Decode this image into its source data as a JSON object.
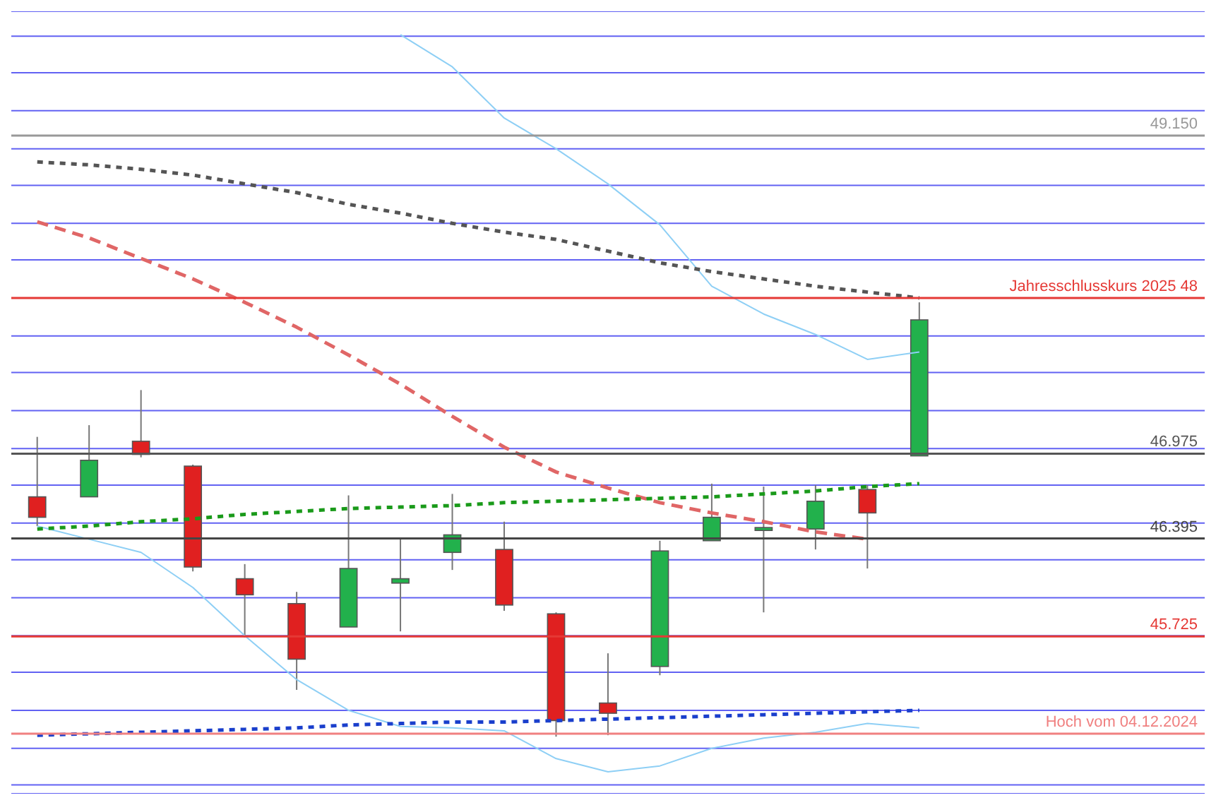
{
  "chart_data": {
    "type": "candlestick",
    "categories": [
      null,
      null,
      null,
      null,
      null,
      null,
      null,
      null,
      null,
      null,
      null,
      null,
      null,
      null,
      null,
      null,
      null,
      null,
      null,
      null,
      null,
      null,
      null
    ],
    "ohlc": [
      [
        46.68,
        47.09,
        46.48,
        46.54
      ],
      [
        46.68,
        47.17,
        46.68,
        46.93
      ],
      [
        47.06,
        47.41,
        46.95,
        46.97
      ],
      [
        46.89,
        46.9,
        46.17,
        46.2
      ],
      [
        46.12,
        46.22,
        45.72,
        46.01
      ],
      [
        45.95,
        46.03,
        45.36,
        45.57
      ],
      [
        45.79,
        46.69,
        45.79,
        46.19
      ],
      [
        46.09,
        46.39,
        45.76,
        46.12
      ],
      [
        46.3,
        46.7,
        46.18,
        46.42
      ],
      [
        46.32,
        46.51,
        45.9,
        45.94
      ],
      [
        45.88,
        45.89,
        45.04,
        45.15
      ],
      [
        45.27,
        45.61,
        45.05,
        45.2
      ],
      [
        45.52,
        46.38,
        45.46,
        46.31
      ],
      [
        46.38,
        46.77,
        46.38,
        46.54
      ],
      [
        46.45,
        46.75,
        45.89,
        46.47
      ],
      [
        46.46,
        46.76,
        46.32,
        46.65
      ],
      [
        46.73,
        46.76,
        46.19,
        46.57
      ],
      [
        46.96,
        48.01,
        46.96,
        47.89
      ],
      null,
      null,
      null,
      null,
      null
    ],
    "colors": [
      "#e02020",
      "#22b14c",
      "#e02020",
      "#e02020",
      "#e02020",
      "#e02020",
      "#22b14c",
      "#22b14c",
      "#22b14c",
      "#e02020",
      "#e02020",
      "#e02020",
      "#22b14c",
      "#22b14c",
      "#22b14c",
      "#22b14c",
      "#e02020",
      "#22b14c",
      null,
      null,
      null,
      null,
      null
    ],
    "series": [
      {
        "type": "line",
        "color": "#8ecff5",
        "line_style": "solid",
        "values": [
          null,
          null,
          null,
          null,
          null,
          null,
          null,
          49.84,
          49.62,
          49.27,
          49.06,
          48.82,
          48.54,
          48.12,
          47.93,
          47.79,
          47.62,
          47.67,
          null,
          null,
          null,
          null,
          null
        ]
      },
      {
        "type": "line",
        "color": "#8ecff5",
        "line_style": "solid",
        "values": [
          46.48,
          46.39,
          46.3,
          46.06,
          45.73,
          45.43,
          45.22,
          45.11,
          45.1,
          45.08,
          44.89,
          44.8,
          44.84,
          44.96,
          45.03,
          45.07,
          45.13,
          45.1,
          null,
          null,
          null,
          null,
          null
        ]
      },
      {
        "type": "line",
        "color": "#555555",
        "line_style": "dotted",
        "values": [
          48.97,
          48.95,
          48.92,
          48.88,
          48.82,
          48.76,
          48.68,
          48.62,
          48.55,
          48.49,
          48.44,
          48.36,
          48.28,
          48.22,
          48.17,
          48.12,
          48.08,
          48.04,
          null,
          null,
          null,
          null,
          null
        ]
      },
      {
        "type": "line",
        "color": "#e06666",
        "line_style": "dashed",
        "values": [
          48.56,
          48.45,
          48.31,
          48.17,
          48.01,
          47.84,
          47.65,
          47.45,
          47.23,
          47.02,
          46.85,
          46.74,
          46.64,
          46.57,
          46.51,
          46.44,
          46.39,
          null,
          null,
          null,
          null,
          null,
          null
        ]
      },
      {
        "type": "line",
        "color": "#1a9a1a",
        "line_style": "dotted",
        "values": [
          46.46,
          46.48,
          46.51,
          46.53,
          46.56,
          46.58,
          46.6,
          46.61,
          46.62,
          46.64,
          46.65,
          46.66,
          46.67,
          46.68,
          46.7,
          46.72,
          46.75,
          46.77,
          null,
          null,
          null,
          null,
          null
        ]
      },
      {
        "type": "line",
        "color": "#1a3fcc",
        "line_style": "dotted",
        "values": [
          45.05,
          45.06,
          45.07,
          45.08,
          45.09,
          45.1,
          45.12,
          45.13,
          45.14,
          45.14,
          45.15,
          45.16,
          45.17,
          45.18,
          45.19,
          45.2,
          45.21,
          45.22,
          null,
          null,
          null,
          null,
          null
        ]
      }
    ],
    "ref_lines": [
      {
        "axis": "y",
        "value": 49.15,
        "label": "49.150",
        "color": "#999999"
      },
      {
        "axis": "y",
        "value": 48.04,
        "label": "Jahresschlusskurs 2025 48",
        "color": "#e53935"
      },
      {
        "axis": "y",
        "value": 46.975,
        "label": "46.975",
        "color": "#555555"
      },
      {
        "axis": "y",
        "value": 46.395,
        "label": "46.395",
        "color": "#444444"
      },
      {
        "axis": "y",
        "value": 45.725,
        "label": "45.725",
        "color": "#e53935"
      },
      {
        "axis": "y",
        "value": 45.06,
        "label": "Hoch vom 04.12.2024",
        "color": "#f08080"
      }
    ],
    "ylim": [
      44.65,
      50.0
    ],
    "yticks": [
      {
        "value": 44.71,
        "label": null
      },
      {
        "value": 44.96,
        "label": null
      },
      {
        "value": 45.22,
        "label": null
      },
      {
        "value": 45.48,
        "label": null
      },
      {
        "value": 45.73,
        "label": null
      },
      {
        "value": 45.99,
        "label": null
      },
      {
        "value": 46.25,
        "label": null
      },
      {
        "value": 46.5,
        "label": null
      },
      {
        "value": 46.76,
        "label": null
      },
      {
        "value": 47.01,
        "label": null
      },
      {
        "value": 47.27,
        "label": null
      },
      {
        "value": 47.53,
        "label": null
      },
      {
        "value": 47.78,
        "label": null
      },
      {
        "value": 48.3,
        "label": null
      },
      {
        "value": 48.55,
        "label": null
      },
      {
        "value": 48.81,
        "label": null
      },
      {
        "value": 49.06,
        "label": null
      },
      {
        "value": 49.32,
        "label": null
      },
      {
        "value": 49.58,
        "label": null
      },
      {
        "value": 49.83,
        "label": null
      }
    ],
    "grid": "y",
    "tick_labels": false
  }
}
